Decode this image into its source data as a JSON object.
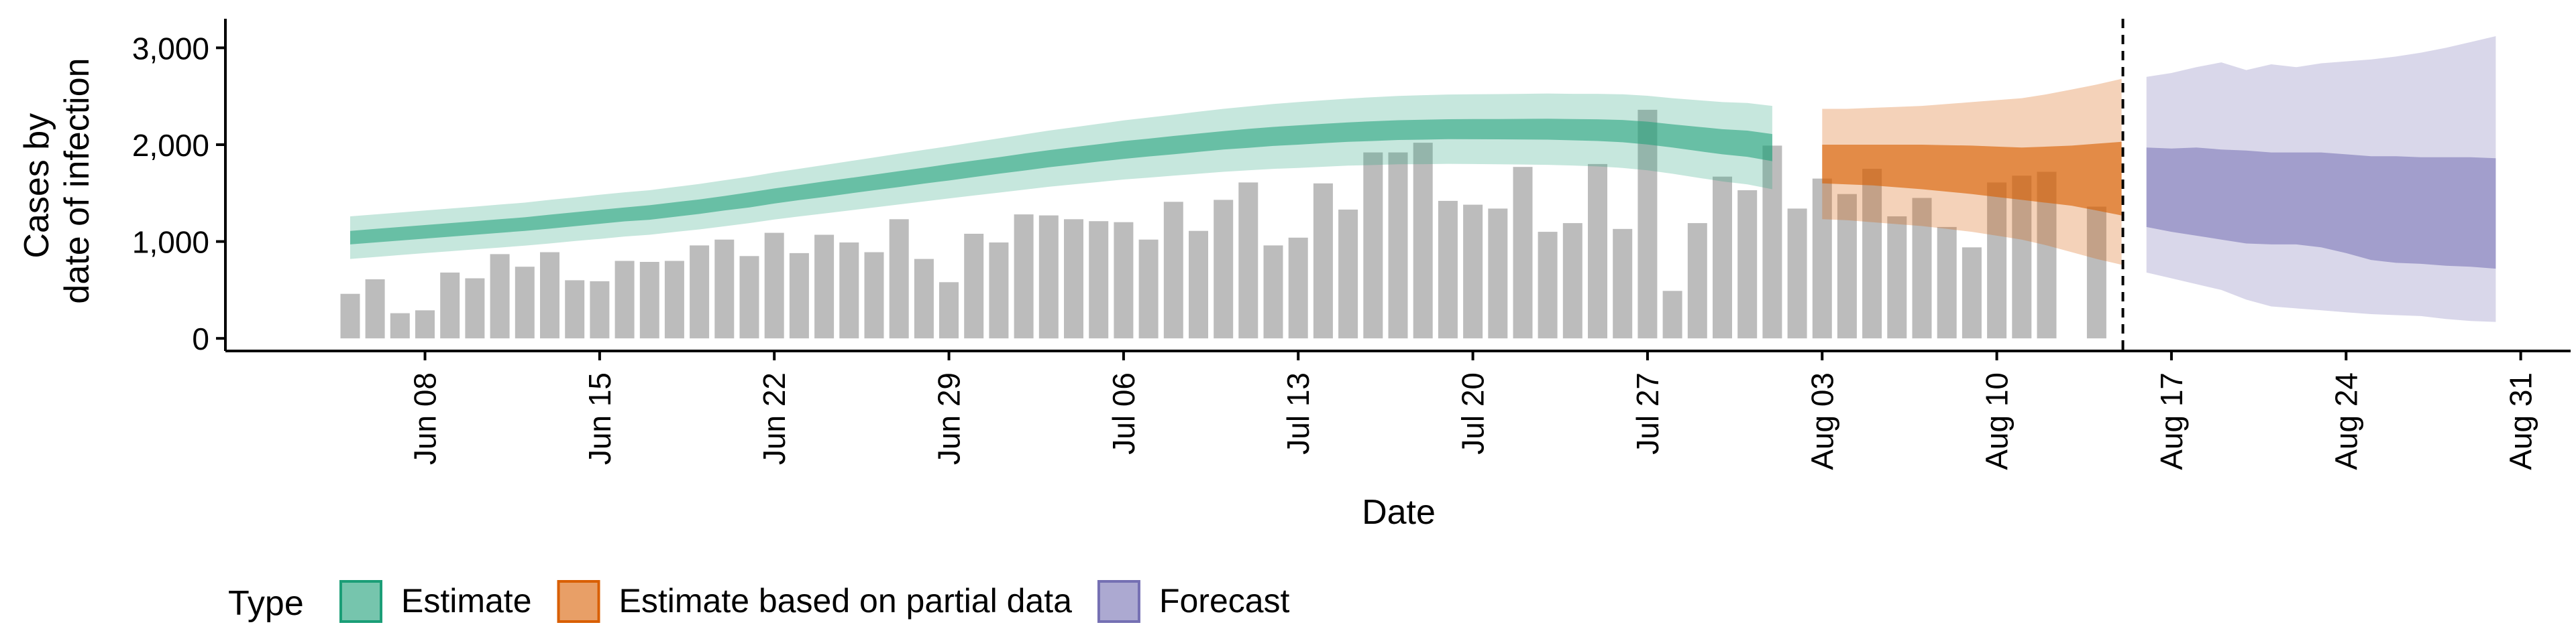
{
  "chart_data": {
    "type": "bar",
    "xlabel": "Date",
    "ylabel_lines": [
      "Cases by",
      "date of infection"
    ],
    "ylim": [
      -130,
      3300
    ],
    "y_ticks": [
      0,
      1000,
      2000,
      3000
    ],
    "y_tick_labels": [
      "0",
      "1,000",
      "2,000",
      "3,000"
    ],
    "x_ticks": [
      "2020-06-08",
      "2020-06-15",
      "2020-06-22",
      "2020-06-29",
      "2020-07-06",
      "2020-07-13",
      "2020-07-20",
      "2020-07-27",
      "2020-08-03",
      "2020-08-10",
      "2020-08-17",
      "2020-08-24",
      "2020-08-31"
    ],
    "x_tick_labels": [
      "Jun 08",
      "Jun 15",
      "Jun 22",
      "Jun 29",
      "Jul 06",
      "Jul 13",
      "Jul 20",
      "Jul 27",
      "Aug 03",
      "Aug 10",
      "Aug 17",
      "Aug 24",
      "Aug 31"
    ],
    "xlim": [
      "2020-05-31",
      "2020-09-02"
    ],
    "grid": false,
    "legend_placement": "bottom",
    "legend_title": "Type",
    "legend": [
      {
        "label": "Estimate",
        "fill": "#1b9e77",
        "stroke": "#1b9e77"
      },
      {
        "label": "Estimate based on partial data",
        "fill": "#d95f02",
        "stroke": "#d95f02"
      },
      {
        "label": "Forecast",
        "fill": "#7570b3",
        "stroke": "#7570b3"
      }
    ],
    "bar_color": "#a6a6a6",
    "cutoff_date": "2020-08-15",
    "bars": {
      "start": "2020-06-05",
      "values": [
        460,
        610,
        260,
        290,
        680,
        620,
        870,
        740,
        890,
        600,
        590,
        800,
        790,
        800,
        960,
        1020,
        850,
        1090,
        880,
        1070,
        990,
        890,
        1230,
        820,
        580,
        1080,
        990,
        1280,
        1270,
        1230,
        1210,
        1200,
        1020,
        1410,
        1110,
        1430,
        1610,
        960,
        1040,
        1600,
        1330,
        1920,
        1920,
        2020,
        1420,
        1380,
        1340,
        1770,
        1100,
        1190,
        1800,
        1130,
        2360,
        490,
        1190,
        1670,
        1530,
        1990,
        1340,
        1650,
        1490,
        1750,
        1260,
        1450,
        1150,
        940,
        1610,
        1680,
        1720,
        null,
        1360
      ]
    },
    "bands": [
      {
        "type": "Estimate",
        "start": "2020-06-05",
        "mid": [
          1040,
          1060,
          1080,
          1100,
          1120,
          1140,
          1160,
          1180,
          1205,
          1230,
          1255,
          1280,
          1300,
          1330,
          1360,
          1395,
          1430,
          1470,
          1505,
          1540,
          1575,
          1610,
          1645,
          1680,
          1715,
          1750,
          1785,
          1820,
          1855,
          1885,
          1915,
          1945,
          1970,
          1995,
          2020,
          2045,
          2065,
          2085,
          2100,
          2115,
          2130,
          2140,
          2150,
          2155,
          2160,
          2160,
          2160,
          2160,
          2160,
          2155,
          2150,
          2140,
          2120,
          2090,
          2060,
          2030,
          2010,
          1970
        ],
        "inner_half": [
          70,
          70,
          70,
          70,
          70,
          70,
          70,
          70,
          72,
          72,
          72,
          72,
          75,
          75,
          75,
          75,
          78,
          78,
          78,
          80,
          80,
          80,
          82,
          82,
          85,
          85,
          85,
          88,
          88,
          90,
          90,
          92,
          92,
          95,
          95,
          95,
          98,
          98,
          100,
          100,
          100,
          102,
          102,
          103,
          103,
          104,
          105,
          106,
          108,
          110,
          112,
          115,
          118,
          120,
          125,
          130,
          135,
          140
        ],
        "outer_half": [
          220,
          220,
          220,
          220,
          220,
          220,
          222,
          222,
          225,
          225,
          228,
          228,
          230,
          232,
          235,
          238,
          240,
          243,
          246,
          250,
          254,
          258,
          262,
          266,
          270,
          275,
          280,
          285,
          290,
          295,
          300,
          305,
          310,
          315,
          320,
          325,
          330,
          335,
          340,
          343,
          346,
          350,
          353,
          356,
          358,
          360,
          362,
          365,
          368,
          370,
          375,
          380,
          385,
          390,
          400,
          410,
          420,
          430
        ]
      },
      {
        "type": "Estimate based on partial data",
        "start": "2020-08-03",
        "mid": [
          1800,
          1795,
          1790,
          1780,
          1770,
          1755,
          1740,
          1720,
          1700,
          1690,
          1680,
          1665,
          1650
        ],
        "inner_half": [
          200,
          205,
          210,
          220,
          230,
          240,
          250,
          260,
          270,
          290,
          310,
          345,
          380
        ],
        "upper": [
          2370,
          2370,
          2380,
          2390,
          2400,
          2420,
          2440,
          2460,
          2480,
          2520,
          2570,
          2620,
          2680
        ],
        "lower": [
          1230,
          1220,
          1200,
          1180,
          1160,
          1130,
          1100,
          1060,
          1020,
          960,
          890,
          820,
          760
        ]
      },
      {
        "type": "Forecast",
        "start": "2020-08-16",
        "upper_inner": [
          1970,
          1960,
          1970,
          1950,
          1940,
          1920,
          1920,
          1920,
          1900,
          1880,
          1880,
          1870,
          1870,
          1870,
          1860
        ],
        "lower_inner": [
          1150,
          1100,
          1060,
          1020,
          980,
          970,
          970,
          940,
          880,
          810,
          780,
          770,
          750,
          740,
          720
        ],
        "upper": [
          2700,
          2740,
          2800,
          2850,
          2770,
          2830,
          2800,
          2840,
          2860,
          2880,
          2910,
          2950,
          3000,
          3060,
          3120
        ],
        "lower": [
          680,
          620,
          560,
          500,
          400,
          330,
          310,
          290,
          270,
          250,
          240,
          230,
          200,
          180,
          170
        ]
      }
    ]
  }
}
